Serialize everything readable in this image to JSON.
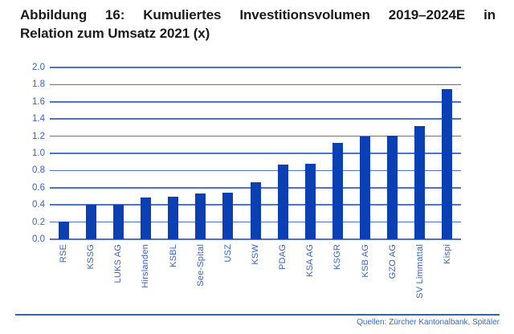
{
  "figure": {
    "title_line1": "Abbildung 16: Kumuliertes Investitionsvolumen 2019–2024E in",
    "title_line2": "Relation zum Umsatz 2021 (x)",
    "source": "Quellen: Zürcher Kantonalbank, Spitäler"
  },
  "colors": {
    "bar": "#0a40b4",
    "gridline": "#4d72ca",
    "axis_label": "#3a64c8",
    "divider": "#2f62c6",
    "source_text": "#3a67ca",
    "title_text": "#1b1b1b"
  },
  "chart_data": {
    "type": "bar",
    "title": "Kumuliertes Investitionsvolumen 2019–2024E in Relation zum Umsatz 2021 (x)",
    "categories": [
      "RSE",
      "KSSG",
      "LUKS AG",
      "Hirslanden",
      "KSBL",
      "See-Spital",
      "USZ",
      "KSW",
      "PDAG",
      "KSA AG",
      "KSGR",
      "KSB AG",
      "GZO AG",
      "SV Limmattal",
      "Kispi"
    ],
    "values": [
      0.21,
      0.4,
      0.4,
      0.49,
      0.5,
      0.53,
      0.54,
      0.66,
      0.87,
      0.88,
      1.12,
      1.2,
      1.21,
      1.32,
      1.75
    ],
    "xlabel": "",
    "ylabel": "",
    "ylim": [
      0.0,
      2.0
    ],
    "y_ticks": [
      2.0,
      1.8,
      1.6,
      1.4,
      1.2,
      1.0,
      0.8,
      0.6,
      0.4,
      0.2,
      0.0
    ],
    "y_tick_format": "one_decimal",
    "grid": "horizontal",
    "legend": "none",
    "bar_orientation": "vertical",
    "x_label_rotation_deg": 90
  }
}
